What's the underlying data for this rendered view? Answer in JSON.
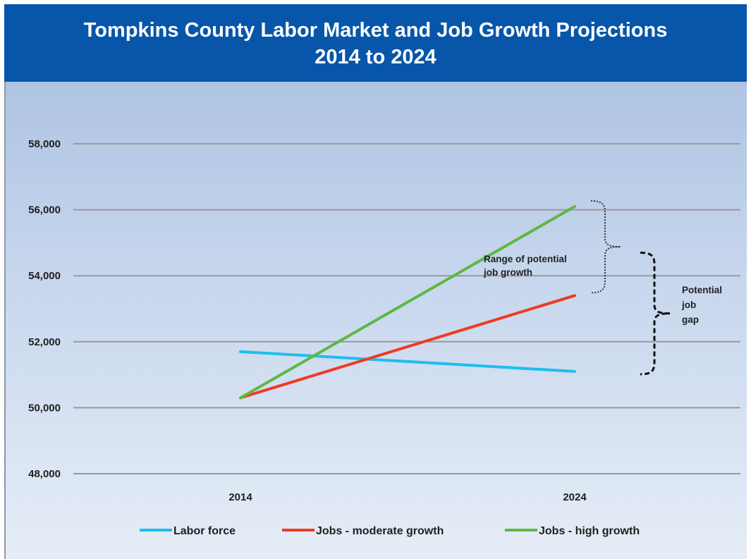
{
  "header": {
    "title_line1": "Tompkins County Labor Market and Job Growth Projections",
    "title_line2": "2014 to 2024"
  },
  "chart_data": {
    "type": "line",
    "title": "Tompkins County Labor Market and Job Growth Projections 2014 to 2024",
    "categories": [
      "2014",
      "2024"
    ],
    "ylim": [
      48000,
      58000
    ],
    "y_ticks": [
      48000,
      50000,
      52000,
      54000,
      56000,
      58000
    ],
    "y_tick_labels": [
      "48,000",
      "50,000",
      "52,000",
      "54,000",
      "56,000",
      "58,000"
    ],
    "grid": true,
    "legend_position": "bottom",
    "series": [
      {
        "name": "Labor force",
        "values": [
          51700,
          51100
        ],
        "color": "#1fbdf0"
      },
      {
        "name": "Jobs - moderate growth",
        "values": [
          50300,
          53400
        ],
        "color": "#ee3b21"
      },
      {
        "name": "Jobs - high growth",
        "values": [
          50300,
          56100
        ],
        "color": "#5cb843"
      }
    ],
    "annotations": [
      {
        "lines": [
          "Range of potential",
          "job growth"
        ]
      },
      {
        "lines": [
          "Potential",
          "job",
          "gap"
        ]
      }
    ]
  }
}
